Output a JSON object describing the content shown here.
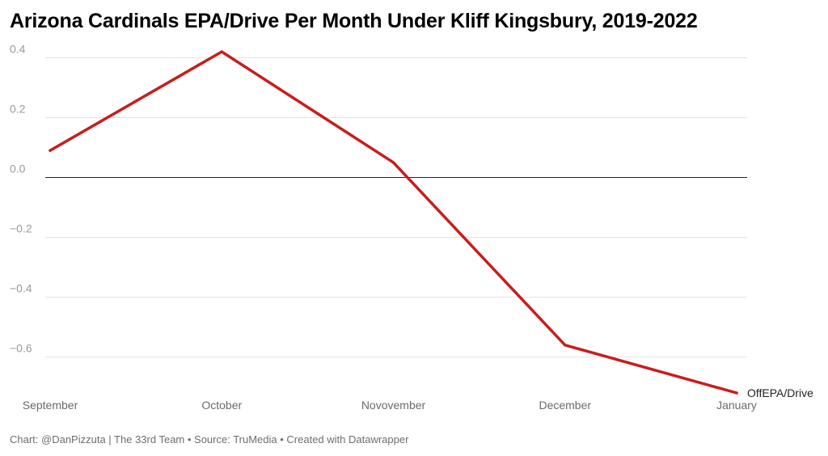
{
  "title": "Arizona Cardinals EPA/Drive Per Month Under Kliff Kingsbury, 2019-2022",
  "footer": "Chart: @DanPizzuta | The 33rd Team • Source: TruMedia • Created with Datawrapper",
  "chart_data": {
    "type": "line",
    "title": "Arizona Cardinals EPA/Drive Per Month Under Kliff Kingsbury, 2019-2022",
    "categories": [
      "September",
      "October",
      "Novovember",
      "December",
      "January"
    ],
    "series": [
      {
        "name": "OffEPA/Drive",
        "values": [
          0.09,
          0.42,
          0.05,
          -0.56,
          -0.72
        ],
        "color": "#c71e1d"
      }
    ],
    "y_ticks": [
      0.4,
      0.2,
      0.0,
      -0.2,
      -0.4,
      -0.6
    ],
    "y_tick_labels": [
      "0.4",
      "0.2",
      "0.0",
      "-0.2",
      "-0.4",
      "-0.6"
    ],
    "ylim": [
      -0.72,
      0.42
    ],
    "xlabel": "",
    "ylabel": "",
    "grid": true,
    "legend": "inline label at line end"
  }
}
